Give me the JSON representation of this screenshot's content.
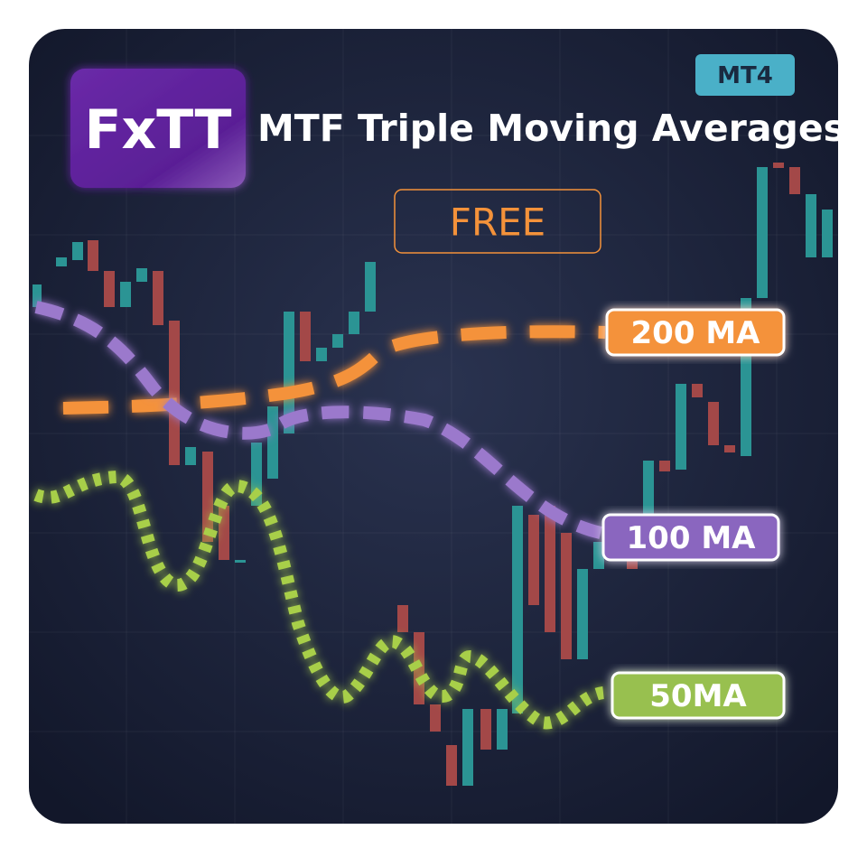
{
  "logo": "FxTT",
  "title": "MTF Triple Moving Averages",
  "platform_badge": "MT4",
  "price_badge": "FREE",
  "line_labels": [
    "200 MA",
    "100 MA",
    "50MA"
  ]
}
